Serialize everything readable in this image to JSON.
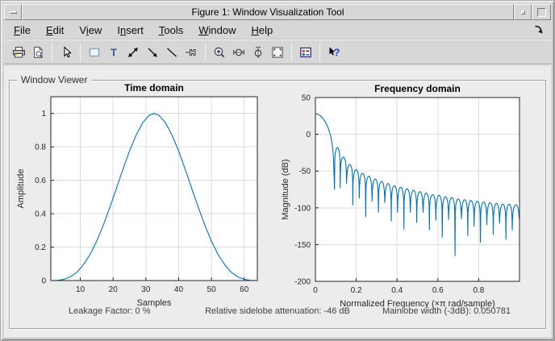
{
  "window": {
    "title": "Figure 1: Window Visualization Tool",
    "controls": [
      "window-menu",
      "minimize",
      "maximize"
    ]
  },
  "menu": {
    "items": [
      {
        "label": "File",
        "underline": 0
      },
      {
        "label": "Edit",
        "underline": 0
      },
      {
        "label": "View",
        "underline": 1
      },
      {
        "label": "Insert",
        "underline": 1
      },
      {
        "label": "Tools",
        "underline": 0
      },
      {
        "label": "Window",
        "underline": 0
      },
      {
        "label": "Help",
        "underline": 0
      }
    ],
    "dock_icon": "dock-figure"
  },
  "toolbar": {
    "buttons": [
      "print",
      "print-preview",
      "separator",
      "edit-plot-pointer",
      "separator",
      "insert-rectangle",
      "insert-text",
      "insert-double-arrow",
      "insert-arrow",
      "insert-line",
      "pin-to-axes",
      "separator",
      "zoom-in",
      "zoom-x",
      "zoom-y",
      "full-view",
      "separator",
      "analysis-parameters",
      "separator",
      "whats-this"
    ]
  },
  "group": {
    "label": "Window Viewer"
  },
  "status": {
    "leakage": "Leakage Factor: 0 %",
    "sidelobe": "Relative sidelobe attenuation: -46 dB",
    "mainlobe": "Mainlobe width (-3dB): 0.050781"
  },
  "accent_color": "#0072BD",
  "chart_data": [
    {
      "type": "line",
      "title": "Time domain",
      "xlabel": "Samples",
      "ylabel": "Amplitude",
      "xlim": [
        1,
        64
      ],
      "ylim": [
        0,
        1.1
      ],
      "xticks": [
        10,
        20,
        30,
        40,
        50,
        60
      ],
      "xtick_labels": [
        "10",
        "20",
        "30",
        "40",
        "50",
        "60"
      ],
      "yticks": [
        0,
        0.2,
        0.4,
        0.6,
        0.8,
        1
      ],
      "ytick_labels": [
        "0",
        "0.2",
        "0.4",
        "0.6",
        "0.8",
        "1"
      ],
      "grid": true,
      "color": "#0072BD",
      "points": [
        [
          1,
          0
        ],
        [
          3,
          0.001
        ],
        [
          5,
          0.007
        ],
        [
          7,
          0.022
        ],
        [
          9,
          0.05
        ],
        [
          11,
          0.096
        ],
        [
          13,
          0.157
        ],
        [
          15,
          0.236
        ],
        [
          17,
          0.331
        ],
        [
          19,
          0.437
        ],
        [
          21,
          0.551
        ],
        [
          23,
          0.666
        ],
        [
          25,
          0.775
        ],
        [
          27,
          0.87
        ],
        [
          29,
          0.944
        ],
        [
          31,
          0.989
        ],
        [
          32.5,
          1
        ],
        [
          34,
          0.989
        ],
        [
          36,
          0.944
        ],
        [
          38,
          0.87
        ],
        [
          40,
          0.775
        ],
        [
          42,
          0.666
        ],
        [
          44,
          0.551
        ],
        [
          46,
          0.437
        ],
        [
          48,
          0.331
        ],
        [
          50,
          0.236
        ],
        [
          52,
          0.157
        ],
        [
          54,
          0.096
        ],
        [
          56,
          0.05
        ],
        [
          58,
          0.022
        ],
        [
          60,
          0.007
        ],
        [
          62,
          0.001
        ],
        [
          64,
          0
        ]
      ]
    },
    {
      "type": "lobes",
      "title": "Frequency domain",
      "xlabel": "Normalized Frequency  (×π rad/sample)",
      "ylabel": "Magnitude (dB)",
      "xlim": [
        0,
        1
      ],
      "ylim": [
        -200,
        50
      ],
      "xticks": [
        0,
        0.2,
        0.4,
        0.6,
        0.8
      ],
      "xtick_labels": [
        "0",
        "0.2",
        "0.4",
        "0.6",
        "0.8"
      ],
      "yticks": [
        50,
        0,
        -50,
        -100,
        -150,
        -200
      ],
      "ytick_labels": [
        "50",
        "0",
        "-50",
        "-100",
        "-150",
        "-200"
      ],
      "grid": true,
      "color": "#0072BD",
      "mainlobe": [
        [
          0,
          28
        ],
        [
          0.008,
          27.7
        ],
        [
          0.016,
          26.6
        ],
        [
          0.0254,
          25
        ],
        [
          0.035,
          22.3
        ],
        [
          0.045,
          18.5
        ],
        [
          0.055,
          13.5
        ],
        [
          0.065,
          7
        ],
        [
          0.075,
          -3
        ],
        [
          0.082,
          -13
        ],
        [
          0.088,
          -30
        ],
        [
          0.0938,
          -75
        ]
      ],
      "first_null": 0.0938,
      "peaks": [
        [
          0.106,
          -18
        ],
        [
          0.137,
          -31
        ],
        [
          0.168,
          -41
        ],
        [
          0.199,
          -48
        ],
        [
          0.231,
          -53
        ],
        [
          0.262,
          -57
        ],
        [
          0.293,
          -61
        ],
        [
          0.324,
          -64
        ],
        [
          0.356,
          -67
        ],
        [
          0.387,
          -70
        ],
        [
          0.418,
          -72
        ],
        [
          0.449,
          -74
        ],
        [
          0.481,
          -76
        ],
        [
          0.512,
          -78
        ],
        [
          0.543,
          -80
        ],
        [
          0.574,
          -82
        ],
        [
          0.606,
          -83
        ],
        [
          0.637,
          -85
        ],
        [
          0.668,
          -86
        ],
        [
          0.7,
          -88
        ],
        [
          0.731,
          -89
        ],
        [
          0.762,
          -90
        ],
        [
          0.793,
          -91
        ],
        [
          0.824,
          -92
        ],
        [
          0.856,
          -93
        ],
        [
          0.887,
          -94
        ],
        [
          0.918,
          -95
        ],
        [
          0.949,
          -95
        ],
        [
          0.98,
          -96
        ]
      ],
      "null_offsets": [
        30,
        42,
        26,
        48,
        34,
        55
      ],
      "deep_nulls": [
        {
          "gap": 19,
          "db": -165
        }
      ]
    }
  ]
}
